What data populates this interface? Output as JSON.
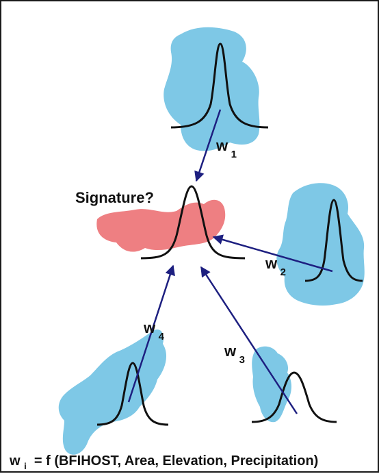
{
  "labels": {
    "signature": "Signature?",
    "w1": {
      "base": "w",
      "sub": "1"
    },
    "w2": {
      "base": "w",
      "sub": "2"
    },
    "w3": {
      "base": "w",
      "sub": "3"
    },
    "w4": {
      "base": "w",
      "sub": "4"
    }
  },
  "formula": {
    "base": "w",
    "sub": "i",
    "rest": " = f (BFIHOST, Area, Elevation, Precipitation)"
  },
  "colors": {
    "catchment_fill": "#7ec8e6",
    "target_fill": "#ee7f82",
    "arrow": "#1d1f80",
    "curve": "#111111",
    "border": "#1a1a1a"
  }
}
